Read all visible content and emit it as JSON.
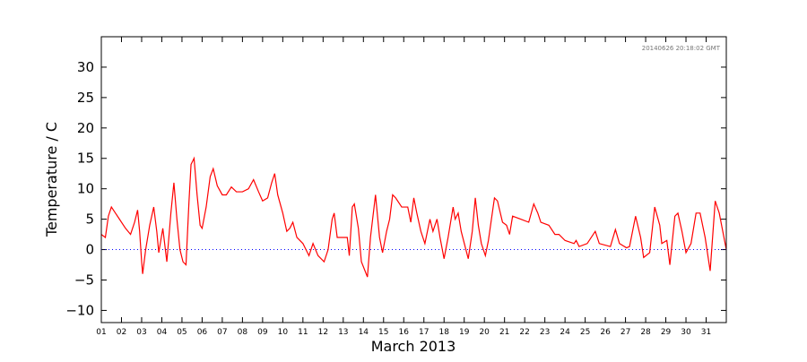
{
  "chart_data": {
    "type": "line",
    "xlabel": "March 2013",
    "ylabel": "Temperature / C",
    "annotation": "20140626 20:18:02 GMT",
    "xlim": [
      1,
      32
    ],
    "ylim": [
      -12,
      35
    ],
    "xticks": [
      {
        "value": 1,
        "label": "01"
      },
      {
        "value": 2,
        "label": "02"
      },
      {
        "value": 3,
        "label": "03"
      },
      {
        "value": 4,
        "label": "04"
      },
      {
        "value": 5,
        "label": "05"
      },
      {
        "value": 6,
        "label": "06"
      },
      {
        "value": 7,
        "label": "07"
      },
      {
        "value": 8,
        "label": "08"
      },
      {
        "value": 9,
        "label": "09"
      },
      {
        "value": 10,
        "label": "10"
      },
      {
        "value": 11,
        "label": "11"
      },
      {
        "value": 12,
        "label": "12"
      },
      {
        "value": 13,
        "label": "13"
      },
      {
        "value": 14,
        "label": "14"
      },
      {
        "value": 15,
        "label": "15"
      },
      {
        "value": 16,
        "label": "16"
      },
      {
        "value": 17,
        "label": "17"
      },
      {
        "value": 18,
        "label": "18"
      },
      {
        "value": 19,
        "label": "19"
      },
      {
        "value": 20,
        "label": "20"
      },
      {
        "value": 21,
        "label": "21"
      },
      {
        "value": 22,
        "label": "22"
      },
      {
        "value": 23,
        "label": "23"
      },
      {
        "value": 24,
        "label": "24"
      },
      {
        "value": 25,
        "label": "25"
      },
      {
        "value": 26,
        "label": "26"
      },
      {
        "value": 27,
        "label": "27"
      },
      {
        "value": 28,
        "label": "28"
      },
      {
        "value": 29,
        "label": "29"
      },
      {
        "value": 30,
        "label": "30"
      },
      {
        "value": 31,
        "label": "31"
      }
    ],
    "yticks": [
      {
        "value": -10,
        "label": "−10"
      },
      {
        "value": -5,
        "label": "−5"
      },
      0,
      5,
      10,
      15,
      20,
      25,
      30
    ],
    "zero_line": {
      "value": 0,
      "color": "#0000ff"
    },
    "series": [
      {
        "color": "#ff0000",
        "x": [
          1.0,
          1.2,
          1.35,
          1.5,
          1.7,
          1.9,
          2.2,
          2.45,
          2.65,
          2.8,
          2.9,
          3.0,
          3.05,
          3.2,
          3.4,
          3.6,
          3.75,
          3.85,
          4.05,
          4.25,
          4.45,
          4.6,
          4.75,
          4.9,
          5.05,
          5.2,
          5.35,
          5.45,
          5.6,
          5.75,
          5.9,
          6.0,
          6.2,
          6.4,
          6.55,
          6.75,
          7.0,
          7.2,
          7.45,
          7.7,
          8.0,
          8.3,
          8.55,
          8.8,
          9.0,
          9.25,
          9.45,
          9.6,
          9.75,
          10.0,
          10.2,
          10.35,
          10.5,
          10.7,
          11.0,
          11.3,
          11.5,
          11.75,
          12.05,
          12.25,
          12.45,
          12.55,
          12.7,
          12.9,
          13.2,
          13.3,
          13.45,
          13.55,
          13.75,
          13.9,
          14.2,
          14.35,
          14.6,
          14.8,
          14.95,
          15.15,
          15.3,
          15.45,
          15.6,
          15.9,
          16.2,
          16.35,
          16.5,
          16.65,
          16.85,
          17.05,
          17.3,
          17.45,
          17.65,
          17.8,
          18.0,
          18.2,
          18.45,
          18.55,
          18.7,
          18.85,
          19.2,
          19.4,
          19.55,
          19.7,
          19.85,
          20.05,
          20.2,
          20.5,
          20.65,
          20.9,
          21.1,
          21.25,
          21.4,
          21.8,
          22.2,
          22.45,
          22.65,
          22.8,
          23.2,
          23.5,
          23.7,
          24.0,
          24.45,
          24.55,
          24.7,
          25.1,
          25.5,
          25.7,
          26.25,
          26.5,
          26.7,
          27.05,
          27.2,
          27.5,
          27.75,
          27.9,
          28.2,
          28.45,
          28.7,
          28.8,
          29.05,
          29.2,
          29.45,
          29.6,
          29.8,
          30.0,
          30.25,
          30.5,
          30.7,
          30.95,
          31.2,
          31.45,
          31.65,
          32.0
        ],
        "values": [
          2.5,
          2,
          5.5,
          7,
          6,
          5,
          3.5,
          2.5,
          4.5,
          6.5,
          3,
          -2,
          -4,
          0,
          4,
          7,
          3,
          -0.5,
          3.5,
          -2,
          6,
          11,
          5,
          0,
          -2,
          -2.5,
          8,
          14,
          15,
          9,
          4,
          3.5,
          7,
          12,
          13.3,
          10.5,
          9,
          9,
          10.3,
          9.5,
          9.5,
          10,
          11.5,
          9.5,
          8,
          8.5,
          11,
          12.5,
          9,
          6,
          3,
          3.5,
          4.5,
          2,
          1,
          -1,
          1,
          -1,
          -2,
          0,
          5,
          6,
          2,
          2,
          2,
          -1,
          7,
          7.5,
          3.5,
          -2,
          -4.5,
          2,
          9,
          2,
          -0.5,
          3,
          5,
          9,
          8.5,
          7,
          7,
          4.5,
          8.5,
          6,
          3,
          1,
          5,
          3,
          5,
          2,
          -1.5,
          2,
          7,
          5,
          6,
          3,
          -1.5,
          3,
          8.5,
          4,
          1,
          -1,
          1.5,
          8.5,
          8,
          4.5,
          4,
          2.5,
          5.5,
          5,
          4.5,
          7.5,
          6,
          4.5,
          4,
          2.5,
          2.5,
          1.5,
          1,
          1.5,
          0.5,
          1,
          3,
          1,
          0.5,
          3.3,
          1,
          0.3,
          0.5,
          5.5,
          2,
          -1.3,
          -0.5,
          7,
          4,
          1,
          1.5,
          -2.5,
          5.5,
          6,
          3,
          -0.5,
          1,
          6,
          6,
          2,
          -3.5,
          8,
          6,
          0
        ]
      }
    ]
  }
}
